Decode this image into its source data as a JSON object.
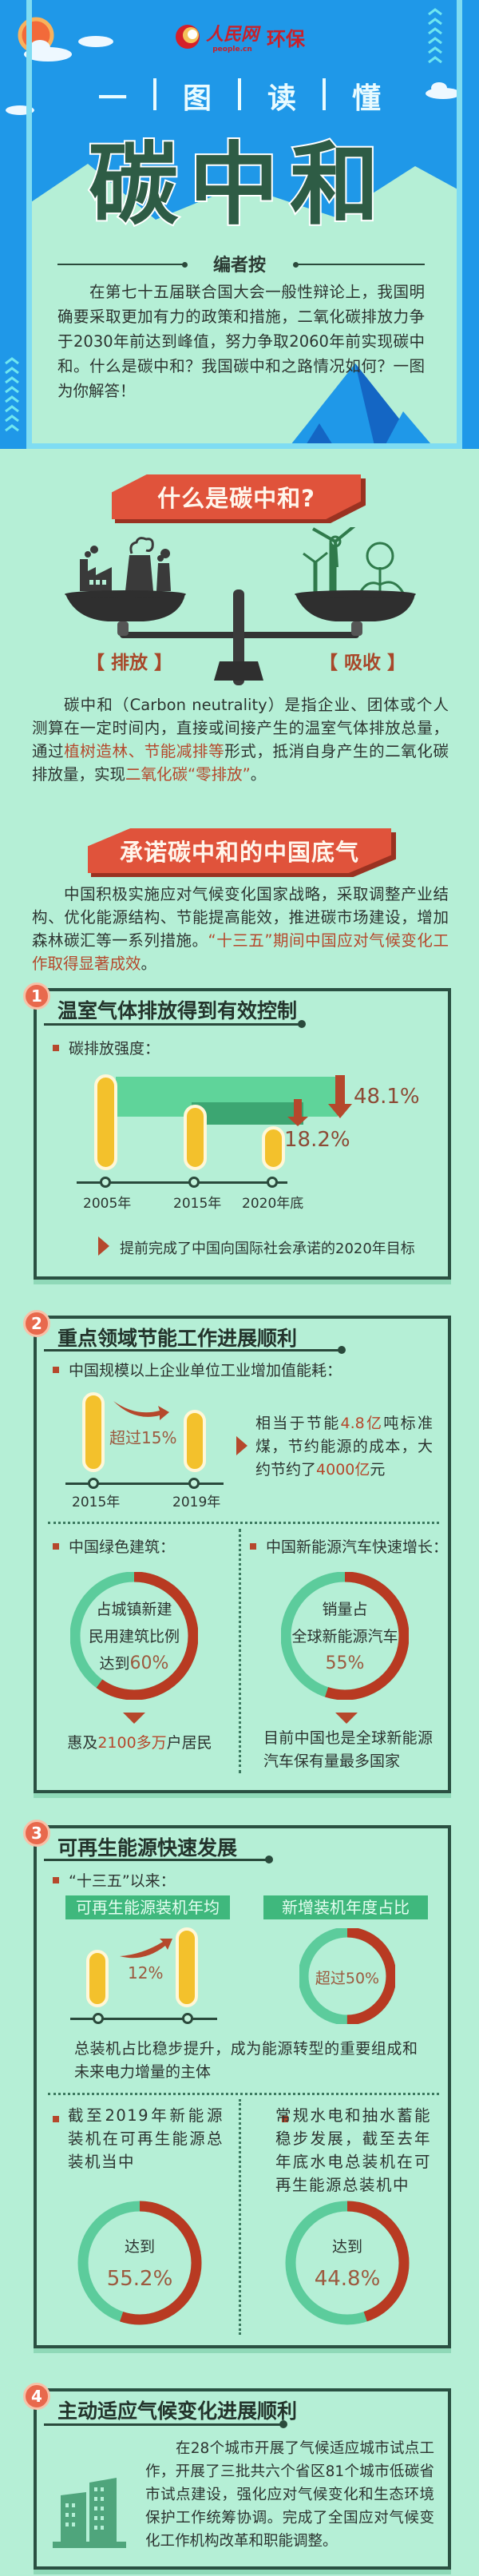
{
  "colors": {
    "header_blue": "#1f98e8",
    "mint": "#b5efd6",
    "accent_red": "#e0533b",
    "highlight": "#b5482c",
    "dark_green": "#2e5c45",
    "bar_yellow": "#f3c12c",
    "donut_green": "#5ccc9c",
    "donut_red": "#b83a22"
  },
  "header": {
    "logo": {
      "brand": "人民网",
      "sub": "people.cn",
      "channel": "环保"
    },
    "subtitle_chars": [
      "一",
      "图",
      "读",
      "懂"
    ],
    "title": "碳中和",
    "note_heading": "编者按",
    "intro": [
      {
        "t": "在第七十五届联合国大会一般性辩论上，我国明确要采取更加有力的政策和措施，二氧化碳排放力争于2030年前达到峰值，努力争取2060年前实现碳中和。什么是碳中和？我国碳中和之路情况如何？一图为你解答！"
      }
    ]
  },
  "what": {
    "banner": "什么是碳中和?",
    "left_label": "【 排放 】",
    "right_label": "【 吸收 】",
    "para": [
      {
        "t": "碳中和（Carbon neutrality）是指企业、团体或个人测算在一定时间内，直接或间接产生的温室气体排放总量，通过"
      },
      {
        "t": "植树造林、节能减排等",
        "hl": true
      },
      {
        "t": "形式，抵消自身产生的二氧化碳排放量，实现"
      },
      {
        "t": "二氧化碳“零排放”",
        "hl": true
      },
      {
        "t": "。"
      }
    ]
  },
  "china": {
    "banner": "承诺碳中和的中国底气",
    "para": [
      {
        "t": "中国积极实施应对气候变化国家战略，采取调整产业结构、优化能源结构、节能提高能效，推进碳市场建设，增加森林碳汇等一系列措施。"
      },
      {
        "t": "“十三五”期间中国应对气候变化工作取得显著成效",
        "hl": true
      },
      {
        "t": "。"
      }
    ]
  },
  "s1": {
    "num": "1",
    "title": "温室气体排放得到有效控制",
    "bullet": "碳排放强度：",
    "years": [
      "2005年",
      "2015年",
      "2020年底"
    ],
    "drop_total": "48.1%",
    "drop_recent": "18.2%",
    "note": "提前完成了中国向国际社会承诺的2020年目标"
  },
  "s2": {
    "num": "2",
    "title": "重点领域节能工作进展顺利",
    "bullet": "中国规模以上企业单位工业增加值能耗：",
    "years": [
      "2015年",
      "2019年"
    ],
    "change": "超过15%",
    "side": [
      {
        "t": "相当于节能"
      },
      {
        "t": "4.8亿",
        "hl": true
      },
      {
        "t": "吨标准煤，节约能源的成本，大约节约了"
      },
      {
        "t": "4000亿",
        "hl": true
      },
      {
        "t": "元"
      }
    ],
    "left": {
      "bullet": "中国绿色建筑：",
      "ring": [
        "占城镇新建",
        "民用建筑比例"
      ],
      "ring_pre": "达到",
      "ring_val": "60%",
      "fraction": 0.6,
      "foot": [
        {
          "t": "惠及"
        },
        {
          "t": "2100多万",
          "hl": true
        },
        {
          "t": "户居民"
        }
      ]
    },
    "right": {
      "bullet": "中国新能源汽车快速增长：",
      "ring": [
        "销量占",
        "全球新能源汽车"
      ],
      "ring_val": "55%",
      "fraction": 0.55,
      "foot": "目前中国也是全球新能源汽车保有量最多国家"
    }
  },
  "s3": {
    "num": "3",
    "title": "可再生能源快速发展",
    "bullet": "“十三五”以来：",
    "label_left": "可再生能源装机年均",
    "label_right": "新增装机年度占比",
    "growth": "12%",
    "share": "超过50%",
    "share_fraction": 0.5,
    "summary": "总装机占比稳步提升，成为能源转型的重要组成和未来电力增量的主体",
    "left": {
      "text": "截至2019年新能源装机在可再生能源总装机当中",
      "pre": "达到",
      "val": "55.2%",
      "fraction": 0.552
    },
    "right": {
      "text": "常规水电和抽水蓄能稳步发展，截至去年年底水电总装机在可再生能源总装机中",
      "pre": "达到",
      "val": "44.8%",
      "fraction": 0.448
    }
  },
  "s4": {
    "num": "4",
    "title": "主动适应气候变化进展顺利",
    "para": "在28个城市开展了气候适应城市试点工作，开展了三批共六个省区81个城市低碳省市试点建设，强化应对气候变化和生态环境保护工作统筹协调。完成了全国应对气候变化工作机构改革和职能调整。"
  }
}
